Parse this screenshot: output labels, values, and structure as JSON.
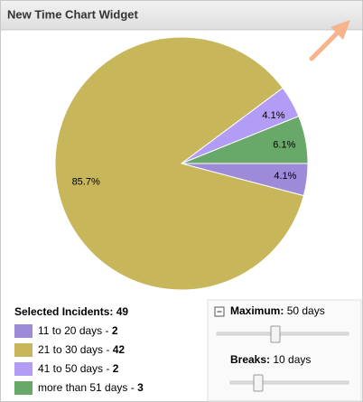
{
  "widget": {
    "title": "New Time Chart Widget"
  },
  "chart_data": {
    "type": "pie",
    "categories": [
      "11 to 20 days",
      "21 to 30 days",
      "41 to 50 days",
      "more than 51 days"
    ],
    "values": [
      4.1,
      85.7,
      4.1,
      6.1
    ],
    "value_labels": [
      "4.1%",
      "85.7%",
      "4.1%",
      "6.1%"
    ],
    "colors": [
      "#9d8ad9",
      "#c8b65a",
      "#b39cf6",
      "#68a868"
    ]
  },
  "legend": {
    "heading": "Selected Incidents:",
    "total": 49,
    "items": [
      {
        "label": "11 to 20 days -",
        "count": 2
      },
      {
        "label": "21 to 30 days -",
        "count": 42
      },
      {
        "label": "41 to 50 days -",
        "count": 2
      },
      {
        "label": "more than 51 days -",
        "count": 3
      }
    ]
  },
  "controls": {
    "maximum": {
      "label": "Maximum:",
      "value": "50 days"
    },
    "breaks": {
      "label": "Breaks:",
      "value": "10 days"
    }
  }
}
